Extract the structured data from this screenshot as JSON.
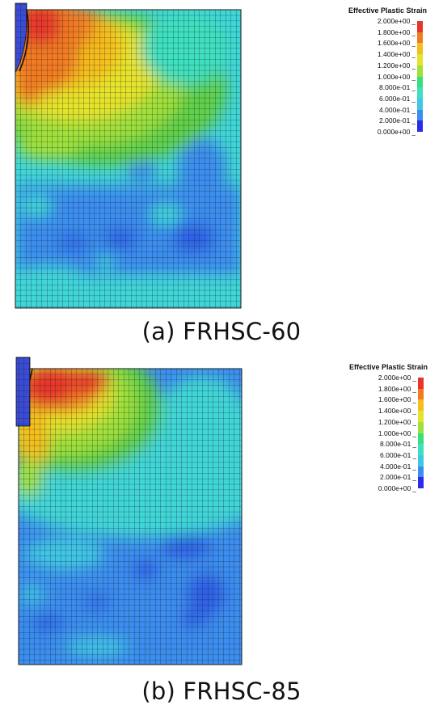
{
  "panels": [
    {
      "caption": "(a) FRHSC-60",
      "legend_title": "Effective Plastic Strain",
      "legend_labels": [
        "2.000e+00",
        "1.800e+00",
        "1.600e+00",
        "1.400e+00",
        "1.200e+00",
        "1.000e+00",
        "8.000e-01",
        "6.000e-01",
        "4.000e-01",
        "2.000e-01",
        "0.000e+00"
      ]
    },
    {
      "caption": "(b) FRHSC-85",
      "legend_title": "Effective Plastic Strain",
      "legend_labels": [
        "2.000e+00",
        "1.800e+00",
        "1.600e+00",
        "1.400e+00",
        "1.200e+00",
        "1.000e+00",
        "8.000e-01",
        "6.000e-01",
        "4.000e-01",
        "2.000e-01",
        "0.000e+00"
      ]
    }
  ],
  "colors": {
    "scale": [
      "#e8342a",
      "#f17a22",
      "#f5bd1f",
      "#e6e32c",
      "#9fe03a",
      "#5ed04a",
      "#38e07c",
      "#3ee0c0",
      "#3fc8e6",
      "#3b8ef0",
      "#2b2be8"
    ],
    "mesh_line": "#1a1a1a",
    "projectile": "#3a4bd6"
  }
}
